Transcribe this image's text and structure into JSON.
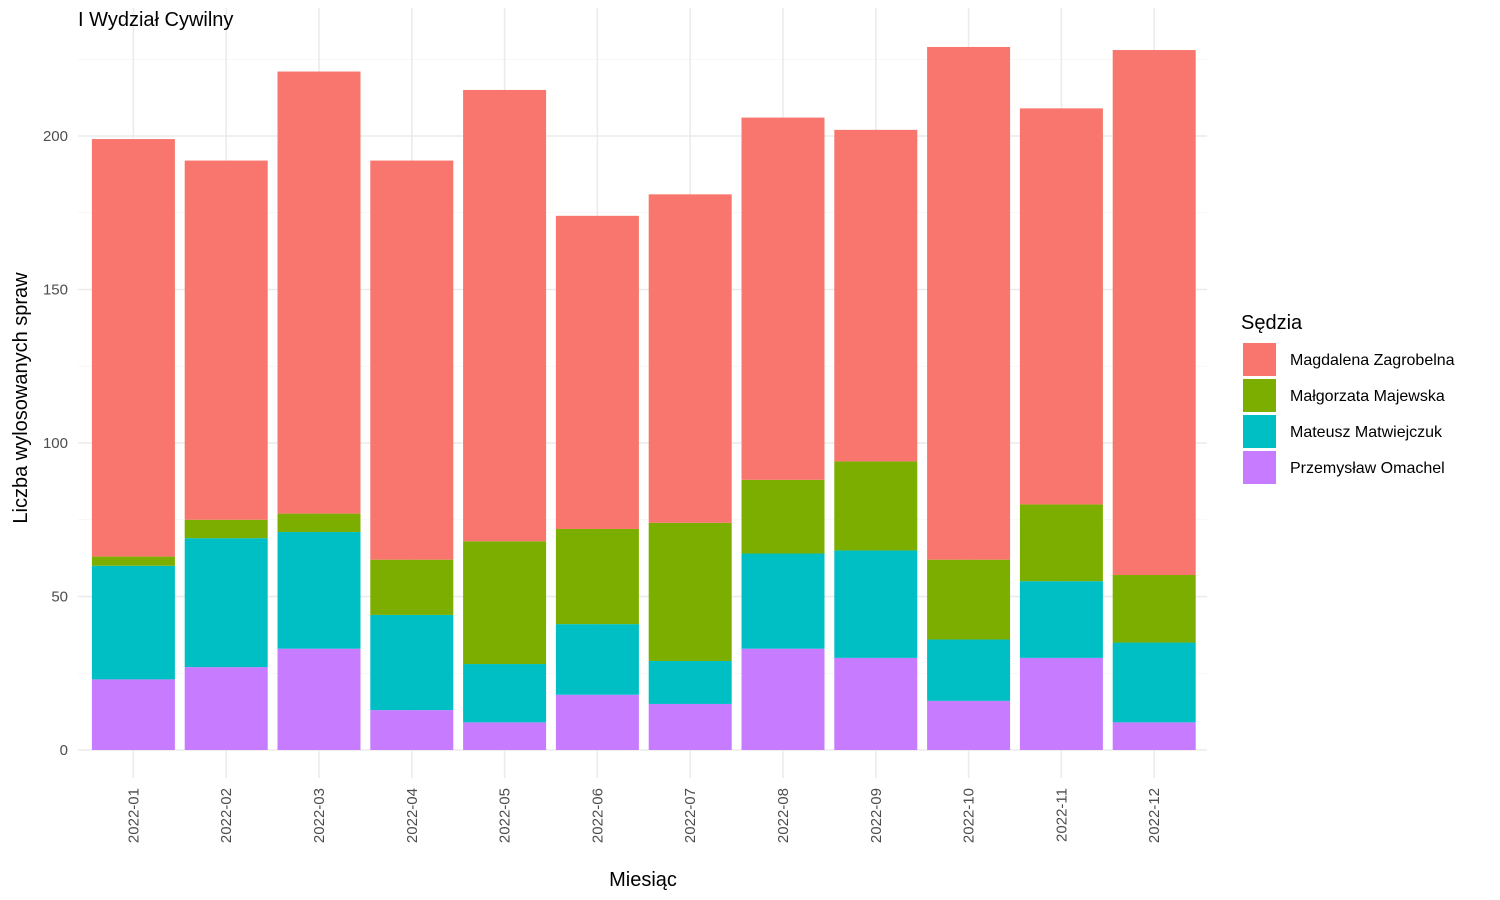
{
  "chart_data": {
    "type": "bar",
    "stacked": true,
    "title": "I Wydział Cywilny",
    "xlabel": "Miesiąc",
    "ylabel": "Liczba wylosowanych spraw",
    "ylim": [
      0,
      230
    ],
    "yticks": [
      0,
      50,
      100,
      150,
      200
    ],
    "grid": true,
    "legend_title": "Sędzia",
    "legend_position": "right",
    "categories": [
      "2022-01",
      "2022-02",
      "2022-03",
      "2022-04",
      "2022-05",
      "2022-06",
      "2022-07",
      "2022-08",
      "2022-09",
      "2022-10",
      "2022-11",
      "2022-12"
    ],
    "series": [
      {
        "name": "Magdalena Zagrobelna",
        "color": "#F8766D",
        "values": [
          136,
          117,
          144,
          130,
          147,
          102,
          107,
          118,
          108,
          167,
          129,
          171
        ]
      },
      {
        "name": "Małgorzata Majewska",
        "color": "#7CAE00",
        "values": [
          3,
          6,
          6,
          18,
          40,
          31,
          45,
          24,
          29,
          26,
          25,
          22
        ]
      },
      {
        "name": "Mateusz Matwiejczuk",
        "color": "#00BFC4",
        "values": [
          37,
          42,
          38,
          31,
          19,
          23,
          14,
          31,
          35,
          20,
          25,
          26
        ]
      },
      {
        "name": "Przemysław Omachel",
        "color": "#C77CFF",
        "values": [
          23,
          27,
          33,
          13,
          9,
          18,
          15,
          33,
          30,
          16,
          30,
          9
        ]
      }
    ]
  }
}
